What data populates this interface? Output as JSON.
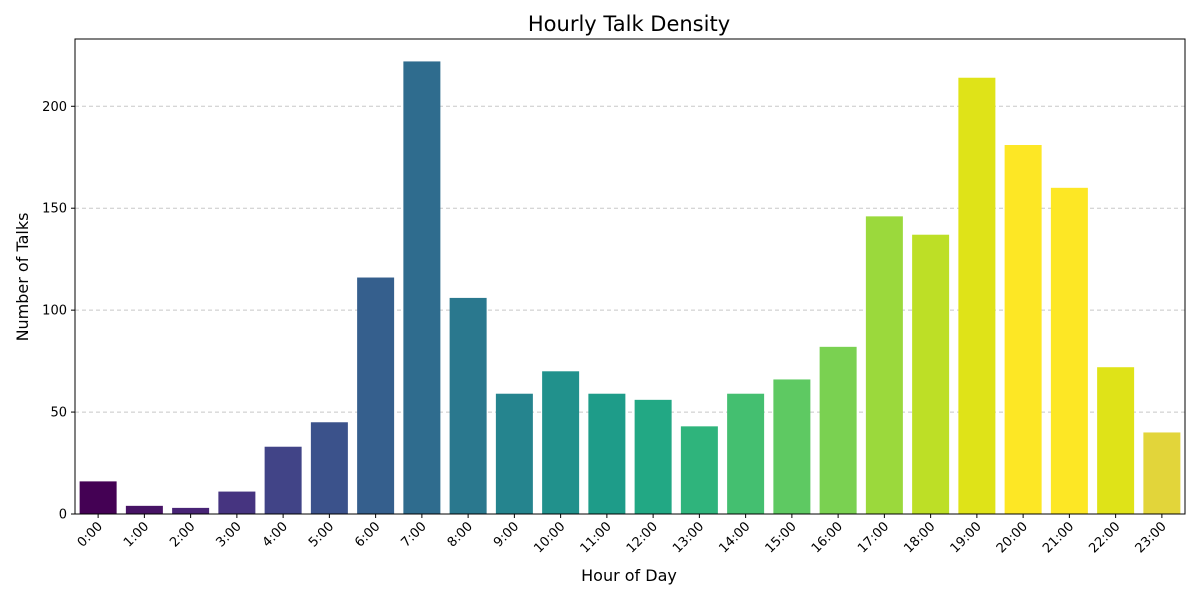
{
  "chart_data": {
    "type": "bar",
    "title": "Hourly Talk Density",
    "xlabel": "Hour of Day",
    "ylabel": "Number of Talks",
    "categories": [
      "0:00",
      "1:00",
      "2:00",
      "3:00",
      "4:00",
      "5:00",
      "6:00",
      "7:00",
      "8:00",
      "9:00",
      "10:00",
      "11:00",
      "12:00",
      "13:00",
      "14:00",
      "15:00",
      "16:00",
      "17:00",
      "18:00",
      "19:00",
      "20:00",
      "21:00",
      "22:00",
      "23:00"
    ],
    "values": [
      16,
      4,
      3,
      11,
      33,
      45,
      116,
      222,
      106,
      59,
      70,
      59,
      56,
      43,
      59,
      66,
      82,
      146,
      137,
      214,
      181,
      160,
      72,
      40
    ],
    "ylim": [
      0,
      233
    ],
    "yticks": [
      0,
      50,
      100,
      150,
      200
    ],
    "grid": "y-dashed",
    "colors": [
      "#440154",
      "#471365",
      "#482475",
      "#463480",
      "#414487",
      "#3b528b",
      "#355f8d",
      "#2f6c8e",
      "#2a788e",
      "#25848e",
      "#21918c",
      "#1e9c89",
      "#22a884",
      "#2fb47c",
      "#44bf70",
      "#5ec962",
      "#7ad151",
      "#9bd93c",
      "#bddf26",
      "#dfe318",
      "#fde725",
      "#fde725",
      "#dfe318",
      "#e2d53a"
    ]
  }
}
